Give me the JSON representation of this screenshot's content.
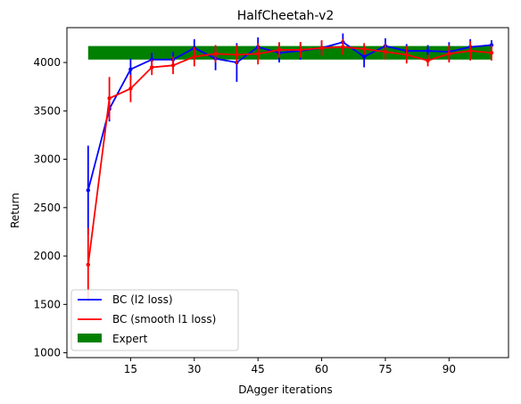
{
  "chart_data": {
    "type": "line",
    "title": "HalfCheetah-v2",
    "xlabel": "DAgger iterations",
    "ylabel": "Return",
    "xlim": [
      0,
      104
    ],
    "ylim": [
      950,
      4360
    ],
    "x_ticks": [
      15,
      30,
      45,
      60,
      75,
      90
    ],
    "y_ticks": [
      1000,
      1500,
      2000,
      2500,
      3000,
      3500,
      4000
    ],
    "grid": false,
    "legend_position": "lower-left",
    "x": [
      5,
      10,
      15,
      20,
      25,
      30,
      35,
      40,
      45,
      50,
      55,
      60,
      65,
      70,
      75,
      80,
      85,
      90,
      95,
      100
    ],
    "series": [
      {
        "name": "BC (l2 loss)",
        "color": "#0000ff",
        "values": [
          2680,
          3520,
          3930,
          4030,
          4030,
          4150,
          4040,
          4000,
          4160,
          4100,
          4120,
          4150,
          4210,
          4060,
          4170,
          4120,
          4120,
          4110,
          4160,
          4180
        ],
        "errors": [
          460,
          130,
          110,
          70,
          80,
          90,
          120,
          200,
          100,
          100,
          90,
          70,
          90,
          110,
          80,
          70,
          60,
          100,
          80,
          50
        ]
      },
      {
        "name": "BC (smooth l1 loss)",
        "color": "#ff0000",
        "values": [
          1910,
          3630,
          3730,
          3950,
          3970,
          4060,
          4090,
          4080,
          4090,
          4130,
          4130,
          4150,
          4160,
          4140,
          4110,
          4080,
          4020,
          4090,
          4120,
          4100
        ],
        "errors": [
          380,
          220,
          140,
          80,
          90,
          100,
          90,
          100,
          110,
          80,
          80,
          80,
          80,
          60,
          80,
          90,
          60,
          90,
          100,
          80
        ]
      }
    ],
    "expert": {
      "name": "Expert",
      "color": "#008000",
      "x_range": [
        5,
        100
      ],
      "y_range": [
        4030,
        4170
      ]
    }
  }
}
